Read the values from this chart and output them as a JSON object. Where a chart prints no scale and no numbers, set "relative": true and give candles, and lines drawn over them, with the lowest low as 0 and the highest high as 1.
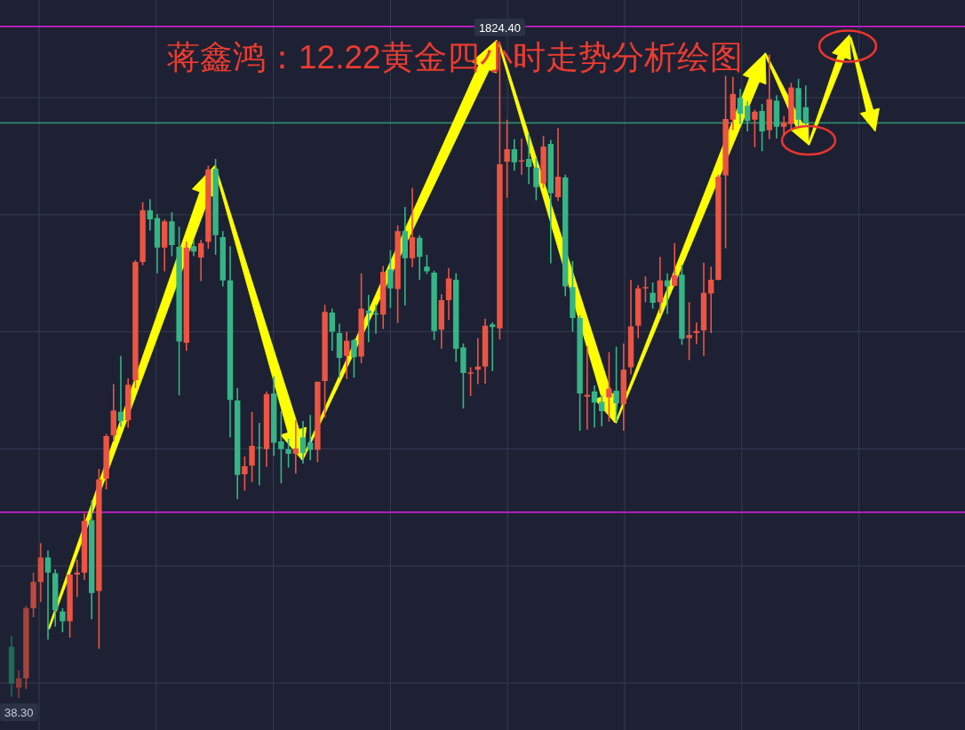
{
  "chart_data": {
    "type": "candlestick",
    "title": "蒋鑫鸿：12.22黄金四小时走势分析绘图",
    "relative": true,
    "grid": true,
    "tick_labels": false,
    "categories": [
      null,
      null,
      null,
      null,
      null,
      null,
      null,
      null,
      null,
      null,
      null,
      null,
      null,
      null,
      null,
      null,
      null,
      null,
      null,
      null,
      null,
      null,
      null,
      null,
      null,
      null,
      null,
      null,
      null,
      null,
      null,
      null,
      null,
      null,
      null,
      null,
      null,
      null,
      null,
      null,
      null,
      null,
      null,
      null,
      null,
      null,
      null,
      null,
      null,
      null,
      null,
      null,
      null,
      null,
      null,
      null,
      null,
      null,
      null,
      null,
      null,
      null,
      null,
      null,
      null,
      null,
      null,
      null,
      null,
      null,
      null,
      null,
      null,
      null,
      null,
      null,
      null,
      null,
      null,
      null,
      null,
      null,
      null,
      null,
      null,
      null,
      null,
      null,
      null,
      null,
      null,
      null,
      null,
      null,
      null,
      null,
      null,
      null,
      null,
      null,
      null,
      null,
      null,
      null,
      null,
      null,
      null,
      null,
      null,
      null
    ],
    "ohlc": [
      [
        0.078,
        0.095,
        0.002,
        0.022
      ],
      [
        0.016,
        0.042,
        0,
        0.03
      ],
      [
        0.03,
        0.14,
        0.014,
        0.137
      ],
      [
        0.137,
        0.191,
        0.123,
        0.177
      ],
      [
        0.177,
        0.236,
        0.146,
        0.214
      ],
      [
        0.214,
        0.225,
        0.089,
        0.191
      ],
      [
        0.19,
        0.196,
        0.109,
        0.134
      ],
      [
        0.132,
        0.137,
        0.1,
        0.117
      ],
      [
        0.117,
        0.188,
        0.092,
        0.188
      ],
      [
        0.188,
        0.211,
        0.154,
        0.191
      ],
      [
        0.191,
        0.281,
        0.18,
        0.27
      ],
      [
        0.271,
        0.301,
        0.12,
        0.16
      ],
      [
        0.163,
        0.349,
        0.075,
        0.333
      ],
      [
        0.334,
        0.402,
        0.318,
        0.399
      ],
      [
        0.4,
        0.478,
        0.391,
        0.438
      ],
      [
        0.436,
        0.521,
        0.413,
        0.422
      ],
      [
        0.423,
        0.487,
        0.412,
        0.477
      ],
      [
        0.484,
        0.667,
        0.472,
        0.664
      ],
      [
        0.664,
        0.755,
        0.659,
        0.743
      ],
      [
        0.743,
        0.76,
        0.712,
        0.729
      ],
      [
        0.731,
        0.737,
        0.647,
        0.686
      ],
      [
        0.686,
        0.729,
        0.65,
        0.726
      ],
      [
        0.726,
        0.74,
        0.673,
        0.69
      ],
      [
        0.687,
        0.718,
        0.461,
        0.543
      ],
      [
        0.541,
        0.695,
        0.529,
        0.686
      ],
      [
        0.688,
        0.698,
        0.673,
        0.68
      ],
      [
        0.671,
        0.698,
        0.635,
        0.693
      ],
      [
        0.695,
        0.811,
        0.684,
        0.805
      ],
      [
        0.806,
        0.821,
        0.675,
        0.705
      ],
      [
        0.702,
        0.711,
        0.627,
        0.636
      ],
      [
        0.636,
        0.688,
        0.397,
        0.454
      ],
      [
        0.453,
        0.472,
        0.303,
        0.34
      ],
      [
        0.341,
        0.368,
        0.316,
        0.353
      ],
      [
        0.354,
        0.436,
        0.329,
        0.384
      ],
      [
        0.382,
        0.419,
        0.324,
        0.381
      ],
      [
        0.379,
        0.467,
        0.352,
        0.463
      ],
      [
        0.464,
        0.49,
        0.369,
        0.389
      ],
      [
        0.391,
        0.437,
        0.327,
        0.379
      ],
      [
        0.379,
        0.395,
        0.351,
        0.372
      ],
      [
        0.372,
        0.423,
        0.342,
        0.38
      ],
      [
        0.397,
        0.422,
        0.357,
        0.373
      ],
      [
        0.389,
        0.431,
        0.362,
        0.378
      ],
      [
        0.378,
        0.482,
        0.359,
        0.482
      ],
      [
        0.483,
        0.599,
        0.427,
        0.588
      ],
      [
        0.587,
        0.593,
        0.529,
        0.558
      ],
      [
        0.556,
        0.57,
        0.488,
        0.518
      ],
      [
        0.521,
        0.558,
        0.486,
        0.544
      ],
      [
        0.545,
        0.547,
        0.488,
        0.519
      ],
      [
        0.52,
        0.647,
        0.51,
        0.593
      ],
      [
        0.59,
        0.614,
        0.542,
        0.586
      ],
      [
        0.586,
        0.599,
        0.555,
        0.584
      ],
      [
        0.584,
        0.658,
        0.562,
        0.649
      ],
      [
        0.653,
        0.682,
        0.594,
        0.624
      ],
      [
        0.623,
        0.72,
        0.571,
        0.711
      ],
      [
        0.711,
        0.748,
        0.598,
        0.67
      ],
      [
        0.67,
        0.777,
        0.656,
        0.702
      ],
      [
        0.701,
        0.705,
        0.637,
        0.672
      ],
      [
        0.657,
        0.675,
        0.646,
        0.65
      ],
      [
        0.648,
        0.651,
        0.545,
        0.559
      ],
      [
        0.561,
        0.615,
        0.532,
        0.606
      ],
      [
        0.606,
        0.655,
        0.576,
        0.639
      ],
      [
        0.637,
        0.647,
        0.512,
        0.532
      ],
      [
        0.534,
        0.54,
        0.441,
        0.495
      ],
      [
        0.494,
        0.504,
        0.46,
        0.496
      ],
      [
        0.5,
        0.548,
        0.478,
        0.505
      ],
      [
        0.505,
        0.578,
        0.479,
        0.567
      ],
      [
        0.569,
        0.572,
        0.498,
        0.565
      ],
      [
        0.563,
        1,
        0.546,
        0.813
      ],
      [
        0.817,
        0.881,
        0.762,
        0.836
      ],
      [
        0.836,
        0.851,
        0.803,
        0.816
      ],
      [
        0.817,
        0.852,
        0.797,
        0.819
      ],
      [
        0.821,
        0.859,
        0.783,
        0.809
      ],
      [
        0.808,
        0.822,
        0.758,
        0.778
      ],
      [
        0.784,
        0.856,
        0.777,
        0.84
      ],
      [
        0.844,
        0.85,
        0.662,
        0.769
      ],
      [
        0.763,
        0.868,
        0.757,
        0.794
      ],
      [
        0.793,
        0.797,
        0.612,
        0.627
      ],
      [
        0.626,
        0.666,
        0.558,
        0.579
      ],
      [
        0.579,
        0.583,
        0.407,
        0.464
      ],
      [
        0.459,
        0.536,
        0.409,
        0.462
      ],
      [
        0.467,
        0.476,
        0.412,
        0.45
      ],
      [
        0.451,
        0.461,
        0.414,
        0.437
      ],
      [
        0.458,
        0.527,
        0.421,
        0.471
      ],
      [
        0.468,
        0.535,
        0.421,
        0.449
      ],
      [
        0.448,
        0.54,
        0.407,
        0.5
      ],
      [
        0.504,
        0.637,
        0.493,
        0.566
      ],
      [
        0.567,
        0.629,
        0.548,
        0.624
      ],
      [
        0.624,
        0.642,
        0.603,
        0.626
      ],
      [
        0.617,
        0.633,
        0.593,
        0.602
      ],
      [
        0.603,
        0.672,
        0.586,
        0.636
      ],
      [
        0.636,
        0.647,
        0.585,
        0.627
      ],
      [
        0.628,
        0.693,
        0.627,
        0.644
      ],
      [
        0.645,
        0.66,
        0.538,
        0.547
      ],
      [
        0.548,
        0.603,
        0.515,
        0.553
      ],
      [
        0.556,
        0.572,
        0.539,
        0.559
      ],
      [
        0.56,
        0.663,
        0.521,
        0.617
      ],
      [
        0.616,
        0.657,
        0.556,
        0.637
      ],
      [
        0.637,
        0.797,
        0.636,
        0.794
      ],
      [
        0.796,
        0.948,
        0.685,
        0.882
      ],
      [
        0.881,
        0.946,
        0.865,
        0.92
      ],
      [
        0.914,
        0.928,
        0.874,
        0.89
      ],
      [
        0.902,
        0.909,
        0.863,
        0.879
      ],
      [
        0.881,
        0.896,
        0.839,
        0.893
      ],
      [
        0.894,
        0.905,
        0.833,
        0.863
      ],
      [
        0.865,
        0.98,
        0.851,
        0.912
      ],
      [
        0.91,
        0.918,
        0.852,
        0.87
      ],
      [
        0.87,
        0.886,
        0.858,
        0.876
      ],
      [
        0.874,
        0.937,
        0.864,
        0.93
      ],
      [
        0.929,
        0.943,
        0.871,
        0.881
      ],
      [
        0.9,
        0.933,
        0.871,
        0.875
      ]
    ],
    "colors": [
      "#1f6b57",
      "#8a3a3a",
      "#a5443d",
      "#bd4a40",
      "#d04f42",
      "#35b585",
      "#35b585",
      "#35b585",
      "#ec5443",
      "#ec5443",
      "#ec5443",
      "#35b585",
      "#ec5443",
      "#ec5443",
      "#ec5443",
      "#35b585",
      "#ec5443",
      "#ec5443",
      "#ec5443",
      "#35b585",
      "#35b585",
      "#ec5443",
      "#35b585",
      "#35b585",
      "#ec5443",
      "#35b585",
      "#ec5443",
      "#ec5443",
      "#35b585",
      "#35b585",
      "#35b585",
      "#35b585",
      "#ec5443",
      "#ec5443",
      "#35b585",
      "#ec5443",
      "#35b585",
      "#35b585",
      "#35b585",
      "#ec5443",
      "#35b585",
      "#35b585",
      "#ec5443",
      "#ec5443",
      "#35b585",
      "#35b585",
      "#ec5443",
      "#35b585",
      "#ec5443",
      "#35b585",
      "#35b585",
      "#ec5443",
      "#35b585",
      "#ec5443",
      "#35b585",
      "#ec5443",
      "#35b585",
      "#35b585",
      "#35b585",
      "#ec5443",
      "#ec5443",
      "#35b585",
      "#35b585",
      "#ec5443",
      "#ec5443",
      "#ec5443",
      "#35b585",
      "#ec5443",
      "#ec5443",
      "#35b585",
      "#ec5443",
      "#35b585",
      "#35b585",
      "#ec5443",
      "#35b585",
      "#ec5443",
      "#35b585",
      "#35b585",
      "#35b585",
      "#ec5443",
      "#35b585",
      "#35b585",
      "#ec5443",
      "#35b585",
      "#ec5443",
      "#ec5443",
      "#ec5443",
      "#ec5443",
      "#35b585",
      "#ec5443",
      "#35b585",
      "#ec5443",
      "#35b585",
      "#ec5443",
      "#ec5443",
      "#ec5443",
      "#ec5443",
      "#ec5443",
      "#ec5443",
      "#ec5443",
      "#35b585",
      "#35b585",
      "#ec5443",
      "#35b585",
      "#ec5443",
      "#35b585",
      "#ec5443",
      "#ec5443",
      "#35b585",
      "#35b585"
    ],
    "ref_lines": [
      {
        "axis": "y",
        "value": 1.023,
        "color": "#e11ee1"
      },
      {
        "axis": "y",
        "value": 0.876,
        "color": "#2f8a6c"
      },
      {
        "axis": "y",
        "value": 0.283,
        "color": "#e11ee1"
      }
    ],
    "annotations": [
      {
        "text": "1824.40",
        "y": 1
      },
      {
        "text": "38.30",
        "y": 0
      }
    ]
  }
}
